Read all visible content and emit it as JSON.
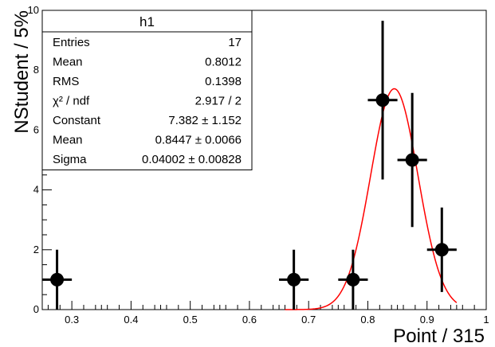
{
  "chart_data": {
    "type": "scatter",
    "xlabel": "Point / 315",
    "ylabel": "NStudent / 5%",
    "xlim": [
      0.25,
      1.0
    ],
    "ylim": [
      0,
      10
    ],
    "x_ticks": [
      "0.3",
      "0.4",
      "0.5",
      "0.6",
      "0.7",
      "0.8",
      "0.9",
      "1"
    ],
    "y_ticks": [
      "0",
      "2",
      "4",
      "6",
      "8",
      "10"
    ],
    "grid": false,
    "points": [
      {
        "x": 0.275,
        "y": 1,
        "yerr": 1,
        "xerr": 0.025
      },
      {
        "x": 0.675,
        "y": 1,
        "yerr": 1,
        "xerr": 0.025
      },
      {
        "x": 0.775,
        "y": 1,
        "yerr": 1,
        "xerr": 0.025
      },
      {
        "x": 0.825,
        "y": 7,
        "yerr": 2.65,
        "xerr": 0.025
      },
      {
        "x": 0.875,
        "y": 5,
        "yerr": 2.24,
        "xerr": 0.025
      },
      {
        "x": 0.925,
        "y": 2,
        "yerr": 1.41,
        "xerr": 0.025
      }
    ],
    "fit": {
      "function": "gaus",
      "constant": 7.382,
      "mean": 0.8447,
      "sigma": 0.04002,
      "range": [
        0.66,
        0.95
      ],
      "color": "#ff0000"
    },
    "stats_box": {
      "title": "h1",
      "rows": [
        {
          "label": "Entries",
          "value": "17"
        },
        {
          "label": "Mean",
          "value": "0.8012"
        },
        {
          "label": "RMS",
          "value": "0.1398"
        },
        {
          "label": "χ² / ndf",
          "value": "2.917 / 2"
        },
        {
          "label": "Constant",
          "value": "7.382 ± 1.152"
        },
        {
          "label": "Mean",
          "value": "0.8447 ± 0.0066"
        },
        {
          "label": "Sigma",
          "value": "0.04002 ± 0.00828"
        }
      ]
    }
  }
}
